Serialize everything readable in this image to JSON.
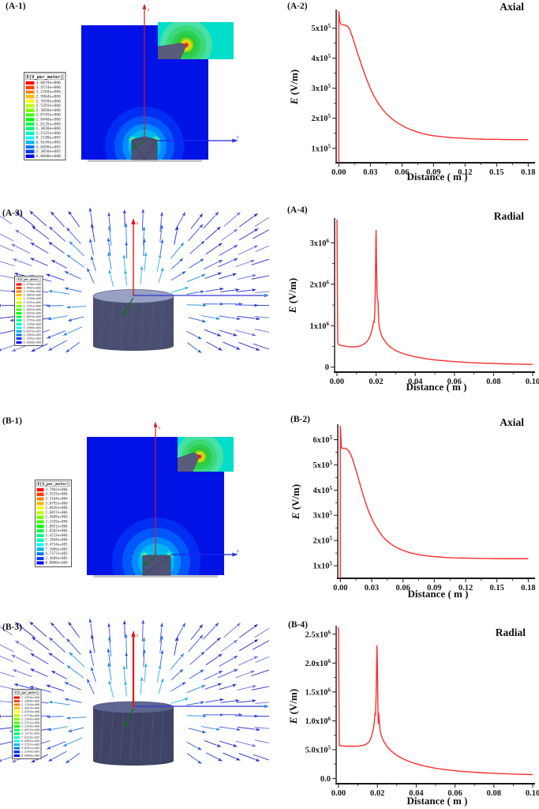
{
  "colors": {
    "curve_red": "#fb2e2e",
    "field_blue": "#0012e6",
    "inset_turquoise": "#00ddc8",
    "electrode_gray": "#4e5274",
    "cylinder_gray": "#474c6e",
    "axis_red": "#e01818",
    "axis_blue": "#2027e8",
    "axis_green": "#0e6e14",
    "plot_axis_black": "#1a1a1a"
  },
  "sim_panels": {
    "a1": {
      "label": "(A-1)",
      "type": "field",
      "axis_z": "z",
      "axis_y": "y"
    },
    "a3": {
      "label": "(A-3)",
      "type": "vector",
      "axis_z": "z",
      "axis_y": "y"
    },
    "b1": {
      "label": "(B-1)",
      "type": "field",
      "axis_z": "z",
      "axis_y": "y"
    },
    "b3": {
      "label": "(B-3)",
      "type": "vector",
      "axis_z": "z",
      "axis_y": "y"
    }
  },
  "legends": {
    "a1": {
      "header": "E[V_per_meter]",
      "values": [
        "3.6879e+006",
        "3.4574e+006",
        "3.2269e+006",
        "2.9964e+006",
        "2.7659e+006",
        "2.5355e+006",
        "2.3050e+006",
        "2.0745e+006",
        "1.8440e+006",
        "1.6135e+006",
        "1.3830e+006",
        "1.1525e+006",
        "9.2198e+005",
        "6.9149e+005",
        "4.6099e+005",
        "2.3050e+005",
        "0.0000e+000"
      ]
    },
    "a3": {
      "header": "E[V_per_meter]",
      "values": [
        "3.6786e+006",
        "3.4487e+006",
        "3.2188e+006",
        "2.9889e+006",
        "2.7590e+006",
        "2.5291e+006",
        "2.2991e+006",
        "2.0692e+006",
        "1.8393e+006",
        "1.6094e+006",
        "1.3795e+006",
        "1.1496e+006",
        "9.1966e+005",
        "6.8975e+005",
        "4.5983e+005",
        "2.2991e+005",
        "0.0000e+000"
      ]
    },
    "b1": {
      "header": "E[V_per_meter]",
      "values": [
        "3.7902e+006",
        "3.5533e+006",
        "3.3164e+006",
        "3.0795e+006",
        "2.8426e+006",
        "2.6057e+006",
        "2.3689e+006",
        "2.1320e+006",
        "1.8951e+006",
        "1.6582e+006",
        "1.4213e+006",
        "1.1844e+006",
        "9.4754e+005",
        "7.1066e+005",
        "4.7377e+005",
        "2.3689e+005",
        "0.0000e+000"
      ]
    },
    "b3": {
      "header": "E[V_per_meter]",
      "values": [
        "2.4393e+006",
        "2.2868e+006",
        "2.1344e+006",
        "1.9819e+006",
        "1.8295e+006",
        "1.6770e+006",
        "1.5246e+006",
        "1.3721e+006",
        "1.2196e+006",
        "1.0672e+006",
        "9.1473e+005",
        "7.6228e+005",
        "6.0982e+005",
        "4.5737e+005",
        "3.0491e+005",
        "1.5246e+005",
        "0.0000e+000"
      ]
    }
  },
  "chart_data": [
    {
      "id": "a2",
      "type": "line",
      "panel_label": "(A-2)",
      "title": "Axial",
      "xlabel": "Distance ( m )",
      "ylabel_italic": "E",
      "ylabel_rest": " (V/m)",
      "x_range": [
        -0.0025,
        0.1865
      ],
      "y_range": [
        52000,
        557000
      ],
      "x_ticks": {
        "values": [
          0.0,
          0.03,
          0.06,
          0.09,
          0.12,
          0.15,
          0.18
        ],
        "labels": [
          "0.00",
          "0.03",
          "0.06",
          "0.09",
          "0.12",
          "0.15",
          "0.18"
        ]
      },
      "y_ticks": {
        "values": [
          100000,
          200000,
          300000,
          400000,
          500000
        ],
        "labels": [
          "1x10^5",
          "2x10^5",
          "3x10^5",
          "4x10^5",
          "5x10^5"
        ]
      },
      "grid": false,
      "legend_position": "none",
      "series": [
        {
          "name": "E axial",
          "color": "#fb2e2e",
          "points": [
            [
              0,
              52000
            ],
            [
              0,
              557000
            ],
            [
              0.001,
              520000
            ],
            [
              0.002,
              514000
            ],
            [
              0.004,
              511000
            ],
            [
              0.006,
              510000
            ],
            [
              0.008,
              507000
            ],
            [
              0.01,
              499000
            ],
            [
              0.012,
              481000
            ],
            [
              0.014,
              459000
            ],
            [
              0.016,
              437000
            ],
            [
              0.018,
              415000
            ],
            [
              0.02,
              394000
            ],
            [
              0.022,
              373000
            ],
            [
              0.024,
              353000
            ],
            [
              0.026,
              334000
            ],
            [
              0.028,
              316000
            ],
            [
              0.03,
              299000
            ],
            [
              0.033,
              277000
            ],
            [
              0.036,
              258000
            ],
            [
              0.039,
              242000
            ],
            [
              0.042,
              228000
            ],
            [
              0.045,
              216000
            ],
            [
              0.048,
              206000
            ],
            [
              0.051,
              197000
            ],
            [
              0.054,
              189000
            ],
            [
              0.057,
              182000
            ],
            [
              0.06,
              176000
            ],
            [
              0.065,
              167000
            ],
            [
              0.07,
              160000
            ],
            [
              0.075,
              154000
            ],
            [
              0.08,
              149000
            ],
            [
              0.085,
              145000
            ],
            [
              0.09,
              142000
            ],
            [
              0.095,
              140000
            ],
            [
              0.1,
              138000
            ],
            [
              0.11,
              135000
            ],
            [
              0.12,
              133000
            ],
            [
              0.13,
              131000
            ],
            [
              0.14,
              130000
            ],
            [
              0.15,
              130000
            ],
            [
              0.16,
              129000
            ],
            [
              0.17,
              129000
            ],
            [
              0.18,
              129000
            ]
          ]
        }
      ]
    },
    {
      "id": "a4",
      "type": "line",
      "panel_label": "(A-4)",
      "title": "Radial",
      "xlabel": "Distance ( m )",
      "ylabel_italic": "E",
      "ylabel_rest": " (V/m)",
      "x_range": [
        -0.0012,
        0.1012
      ],
      "y_range": [
        -120000,
        3560000
      ],
      "x_ticks": {
        "values": [
          0.0,
          0.02,
          0.04,
          0.06,
          0.08,
          0.1
        ],
        "labels": [
          "0.00",
          "0.02",
          "0.04",
          "0.06",
          "0.08",
          "0.10"
        ]
      },
      "y_ticks": {
        "values": [
          0,
          1000000,
          2000000,
          3000000
        ],
        "labels": [
          "0",
          "1x10^6",
          "2x10^6",
          "3x10^6"
        ]
      },
      "grid": false,
      "legend_position": "none",
      "series": [
        {
          "name": "E radial",
          "color": "#fb2e2e",
          "points": [
            [
              0,
              3560000
            ],
            [
              0.0004,
              600000
            ],
            [
              0.001,
              535000
            ],
            [
              0.003,
              515000
            ],
            [
              0.005,
              500000
            ],
            [
              0.007,
              490000
            ],
            [
              0.009,
              488000
            ],
            [
              0.011,
              500000
            ],
            [
              0.013,
              535000
            ],
            [
              0.015,
              600000
            ],
            [
              0.016,
              660000
            ],
            [
              0.017,
              760000
            ],
            [
              0.018,
              920000
            ],
            [
              0.0185,
              1050000
            ],
            [
              0.0188,
              1100000
            ],
            [
              0.019,
              1080000
            ],
            [
              0.0193,
              1250000
            ],
            [
              0.0196,
              1900000
            ],
            [
              0.0199,
              3100000
            ],
            [
              0.02,
              3300000
            ],
            [
              0.0202,
              2600000
            ],
            [
              0.0205,
              1750000
            ],
            [
              0.0208,
              1620000
            ],
            [
              0.021,
              1600000
            ],
            [
              0.0212,
              1250000
            ],
            [
              0.0215,
              1020000
            ],
            [
              0.022,
              880000
            ],
            [
              0.023,
              740000
            ],
            [
              0.024,
              660000
            ],
            [
              0.026,
              540000
            ],
            [
              0.028,
              460000
            ],
            [
              0.03,
              400000
            ],
            [
              0.033,
              340000
            ],
            [
              0.036,
              295000
            ],
            [
              0.04,
              250000
            ],
            [
              0.045,
              205000
            ],
            [
              0.05,
              175000
            ],
            [
              0.055,
              152000
            ],
            [
              0.06,
              133000
            ],
            [
              0.065,
              118000
            ],
            [
              0.07,
              106000
            ],
            [
              0.075,
              96000
            ],
            [
              0.08,
              88000
            ],
            [
              0.085,
              80000
            ],
            [
              0.09,
              74000
            ],
            [
              0.095,
              69000
            ],
            [
              0.1,
              65000
            ]
          ]
        }
      ]
    },
    {
      "id": "b2",
      "type": "line",
      "panel_label": "(B-2)",
      "title": "Axial",
      "xlabel": "Distance ( m )",
      "ylabel_italic": "E",
      "ylabel_rest": " (V/m)",
      "x_range": [
        -0.0025,
        0.1865
      ],
      "y_range": [
        50000,
        655000
      ],
      "x_ticks": {
        "values": [
          0.0,
          0.03,
          0.06,
          0.09,
          0.12,
          0.15,
          0.18
        ],
        "labels": [
          "0.00",
          "0.03",
          "0.06",
          "0.09",
          "0.12",
          "0.15",
          "0.18"
        ]
      },
      "y_ticks": {
        "values": [
          100000,
          200000,
          300000,
          400000,
          500000,
          600000
        ],
        "labels": [
          "1x10^5",
          "2x10^5",
          "3x10^5",
          "4x10^5",
          "5x10^5",
          "6x10^5"
        ]
      },
      "grid": false,
      "legend_position": "none",
      "series": [
        {
          "name": "E axial",
          "color": "#fb2e2e",
          "points": [
            [
              0,
              50000
            ],
            [
              0,
              655000
            ],
            [
              0.001,
              567000
            ],
            [
              0.003,
              566000
            ],
            [
              0.005,
              566000
            ],
            [
              0.007,
              560000
            ],
            [
              0.009,
              549000
            ],
            [
              0.011,
              531000
            ],
            [
              0.013,
              506000
            ],
            [
              0.015,
              479000
            ],
            [
              0.017,
              450000
            ],
            [
              0.019,
              421000
            ],
            [
              0.021,
              392000
            ],
            [
              0.023,
              365000
            ],
            [
              0.025,
              340000
            ],
            [
              0.027,
              317000
            ],
            [
              0.029,
              297000
            ],
            [
              0.031,
              279000
            ],
            [
              0.034,
              256000
            ],
            [
              0.037,
              236000
            ],
            [
              0.04,
              219000
            ],
            [
              0.043,
              205000
            ],
            [
              0.046,
              194000
            ],
            [
              0.05,
              182000
            ],
            [
              0.054,
              172000
            ],
            [
              0.058,
              164000
            ],
            [
              0.062,
              158000
            ],
            [
              0.066,
              152000
            ],
            [
              0.07,
              148000
            ],
            [
              0.075,
              144000
            ],
            [
              0.08,
              141000
            ],
            [
              0.085,
              138000
            ],
            [
              0.09,
              136000
            ],
            [
              0.095,
              135000
            ],
            [
              0.1,
              133000
            ],
            [
              0.11,
              131000
            ],
            [
              0.12,
              130000
            ],
            [
              0.13,
              129000
            ],
            [
              0.14,
              129000
            ],
            [
              0.15,
              128000
            ],
            [
              0.16,
              128000
            ],
            [
              0.17,
              128000
            ],
            [
              0.18,
              128000
            ]
          ]
        }
      ]
    },
    {
      "id": "b4",
      "type": "line",
      "panel_label": "(B-4)",
      "title": "Radial",
      "xlabel": "Distance ( m )",
      "ylabel_italic": "E",
      "ylabel_rest": " (V/m)",
      "x_range": [
        -0.0012,
        0.1012
      ],
      "y_range": [
        -90000,
        2620000
      ],
      "x_ticks": {
        "values": [
          0.0,
          0.02,
          0.04,
          0.06,
          0.08,
          0.1
        ],
        "labels": [
          "0.00",
          "0.02",
          "0.04",
          "0.06",
          "0.08",
          "0.10"
        ]
      },
      "y_ticks": {
        "values": [
          0,
          500000,
          1000000,
          1500000,
          2000000,
          2500000
        ],
        "labels": [
          "0.0",
          "5.0x10^5",
          "1.0x10^6",
          "1.5x10^6",
          "2.0x10^6",
          "2.5x10^6"
        ]
      },
      "grid": false,
      "legend_position": "none",
      "series": [
        {
          "name": "E radial",
          "color": "#fb2e2e",
          "points": [
            [
              0,
              2620000
            ],
            [
              0.0004,
              570000
            ],
            [
              0.002,
              565000
            ],
            [
              0.004,
              562000
            ],
            [
              0.006,
              560000
            ],
            [
              0.008,
              560000
            ],
            [
              0.01,
              562000
            ],
            [
              0.012,
              570000
            ],
            [
              0.014,
              590000
            ],
            [
              0.015,
              610000
            ],
            [
              0.016,
              650000
            ],
            [
              0.017,
              730000
            ],
            [
              0.018,
              870000
            ],
            [
              0.0185,
              1000000
            ],
            [
              0.0188,
              1130000
            ],
            [
              0.019,
              1100000
            ],
            [
              0.0193,
              1350000
            ],
            [
              0.0196,
              1900000
            ],
            [
              0.0198,
              2300000
            ],
            [
              0.02,
              2050000
            ],
            [
              0.0203,
              1200000
            ],
            [
              0.0205,
              950000
            ],
            [
              0.0207,
              1130000
            ],
            [
              0.021,
              980000
            ],
            [
              0.0215,
              820000
            ],
            [
              0.022,
              750000
            ],
            [
              0.023,
              660000
            ],
            [
              0.025,
              550000
            ],
            [
              0.027,
              480000
            ],
            [
              0.03,
              400000
            ],
            [
              0.033,
              345000
            ],
            [
              0.036,
              300000
            ],
            [
              0.04,
              255000
            ],
            [
              0.045,
              210000
            ],
            [
              0.05,
              178000
            ],
            [
              0.055,
              154000
            ],
            [
              0.06,
              135000
            ],
            [
              0.065,
              120000
            ],
            [
              0.07,
              108000
            ],
            [
              0.075,
              98000
            ],
            [
              0.08,
              90000
            ],
            [
              0.085,
              83000
            ],
            [
              0.09,
              77000
            ],
            [
              0.095,
              72000
            ],
            [
              0.1,
              68000
            ]
          ]
        }
      ]
    }
  ]
}
